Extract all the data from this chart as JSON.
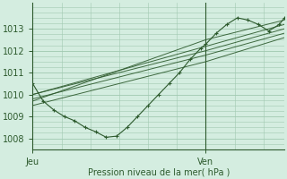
{
  "bg_color": "#d4ede0",
  "grid_color": "#a0c8b0",
  "line_color": "#2d5a2d",
  "xlabel": "Pression niveau de la mer( hPa )",
  "ylim": [
    1007.5,
    1014.2
  ],
  "xlim": [
    0,
    48
  ],
  "xtick_positions": [
    0,
    33
  ],
  "xtick_labels": [
    "Jeu",
    "Ven"
  ],
  "yticks": [
    1008,
    1009,
    1010,
    1011,
    1012,
    1013
  ],
  "vline_x": 33,
  "series_with_markers": {
    "x": [
      0,
      2,
      4,
      6,
      8,
      10,
      12,
      14,
      16,
      18,
      20,
      22,
      24,
      26,
      28,
      30,
      32,
      33,
      35,
      37,
      39,
      41,
      43,
      45,
      47,
      48
    ],
    "y": [
      1010.5,
      1009.7,
      1009.3,
      1009.0,
      1008.8,
      1008.5,
      1008.3,
      1008.05,
      1008.1,
      1008.5,
      1009.0,
      1009.5,
      1010.0,
      1010.5,
      1011.0,
      1011.6,
      1012.1,
      1012.3,
      1012.8,
      1013.2,
      1013.5,
      1013.4,
      1013.2,
      1012.9,
      1013.2,
      1013.5
    ]
  },
  "straight_lines": [
    {
      "x": [
        0,
        33,
        48
      ],
      "y": [
        1010.0,
        1012.0,
        1013.0
      ]
    },
    {
      "x": [
        0,
        33,
        48
      ],
      "y": [
        1010.0,
        1012.2,
        1013.2
      ]
    },
    {
      "x": [
        0,
        33,
        48
      ],
      "y": [
        1009.8,
        1011.8,
        1012.8
      ]
    },
    {
      "x": [
        0,
        33,
        48
      ],
      "y": [
        1009.5,
        1011.5,
        1012.6
      ]
    },
    {
      "x": [
        0,
        33,
        48
      ],
      "y": [
        1009.7,
        1012.5,
        1013.4
      ]
    }
  ]
}
